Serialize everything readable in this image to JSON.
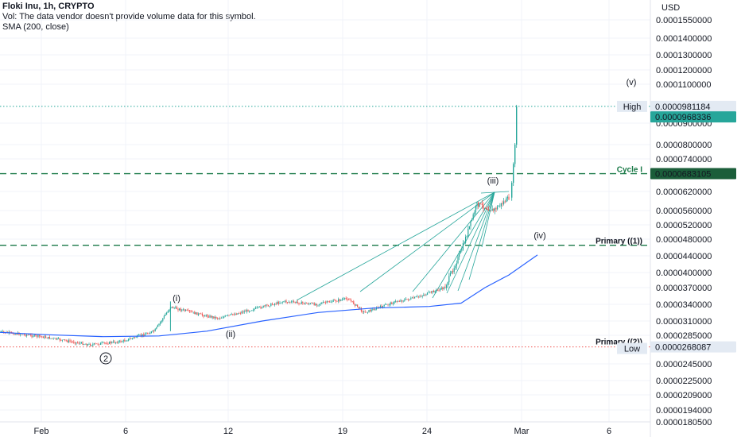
{
  "legend": {
    "title": "Floki Inu, 1h, CRYPTO",
    "vol": "Vol: The data vendor doesn't provide volume data for this symbol.",
    "sma": "SMA (200, close)"
  },
  "colors": {
    "up": "#26a69a",
    "down": "#ef5350",
    "sma": "#2962ff",
    "level": "#1b7a48",
    "low": "#ef5350",
    "high_label_bg": "#e3eaf3",
    "last_price_bg": "#26a69a",
    "cycle_label_bg": "#1b5e3a",
    "fan": "#26a69a"
  },
  "chart_data": {
    "type": "candlestick",
    "symbol": "Floki Inu",
    "interval": "1h",
    "exchange": "CRYPTO",
    "currency": "USD",
    "y_axis_ticks": [
      "0.0001550000",
      "0.0001400000",
      "0.0001300000",
      "0.0001200000",
      "0.0001100000",
      "0.0000900000",
      "0.0000800000",
      "0.0000740000",
      "0.0000620000",
      "0.0000560000",
      "0.0000520000",
      "0.0000480000",
      "0.0000440000",
      "0.0000400000",
      "0.0000370000",
      "0.0000340000",
      "0.0000310000",
      "0.0000285000",
      "0.0000245000",
      "0.0000225000",
      "0.0000209000",
      "0.0000194000",
      "0.0000180500"
    ],
    "x_axis_ticks": [
      "Feb",
      "6",
      "12",
      "19",
      "24",
      "Mar",
      "6"
    ],
    "price_labels": {
      "high": {
        "label": "High",
        "value": "0.0000981184"
      },
      "last": {
        "value": "0.0000968336"
      },
      "cycle": {
        "label": "Cycle I",
        "value": "0.0000683105"
      },
      "low": {
        "label": "Low",
        "value": "0.0000268087"
      }
    },
    "levels": [
      {
        "name": "Cycle I",
        "price": 6.83105e-05,
        "style": "dashed"
      },
      {
        "name": "Primary ((1))",
        "price": 4.65e-05,
        "style": "dashed"
      },
      {
        "name": "Primary ((2))",
        "price": 2.68087e-05,
        "style": "dotted"
      },
      {
        "name": "High",
        "price": 9.81184e-05,
        "style": "dotted"
      }
    ],
    "wave_labels": [
      "(i)",
      "(ii)",
      "(iii)",
      "(iv)",
      "(v)",
      "2"
    ],
    "sma_label": "SMA (200, close)",
    "series_waypoints": [
      {
        "date": "Jan 29",
        "price": 2.92e-05
      },
      {
        "date": "Feb 1",
        "price": 2.83e-05
      },
      {
        "date": "Feb 4",
        "price": 2.71e-05
      },
      {
        "date": "Feb 6",
        "price": 2.76e-05
      },
      {
        "date": "Feb 8",
        "price": 2.92e-05
      },
      {
        "date": "Feb 9",
        "price": 3.35e-05
      },
      {
        "date": "Feb 11",
        "price": 3.2e-05
      },
      {
        "date": "Feb 12",
        "price": 3.15e-05
      },
      {
        "date": "Feb 14",
        "price": 3.3e-05
      },
      {
        "date": "Feb 16",
        "price": 3.45e-05
      },
      {
        "date": "Feb 18",
        "price": 3.4e-05
      },
      {
        "date": "Feb 20",
        "price": 3.5e-05
      },
      {
        "date": "Feb 21",
        "price": 3.25e-05
      },
      {
        "date": "Feb 22",
        "price": 3.35e-05
      },
      {
        "date": "Feb 23",
        "price": 3.45e-05
      },
      {
        "date": "Feb 24",
        "price": 3.5e-05
      },
      {
        "date": "Feb 26",
        "price": 3.7e-05
      },
      {
        "date": "Feb 27",
        "price": 4.5e-05
      },
      {
        "date": "Feb 28",
        "price": 5.8e-05
      },
      {
        "date": "Feb 29",
        "price": 5.6e-05
      },
      {
        "date": "Mar 1",
        "price": 6e-05
      },
      {
        "date": "Mar 1 12h",
        "price": 9.68336e-05
      }
    ]
  }
}
